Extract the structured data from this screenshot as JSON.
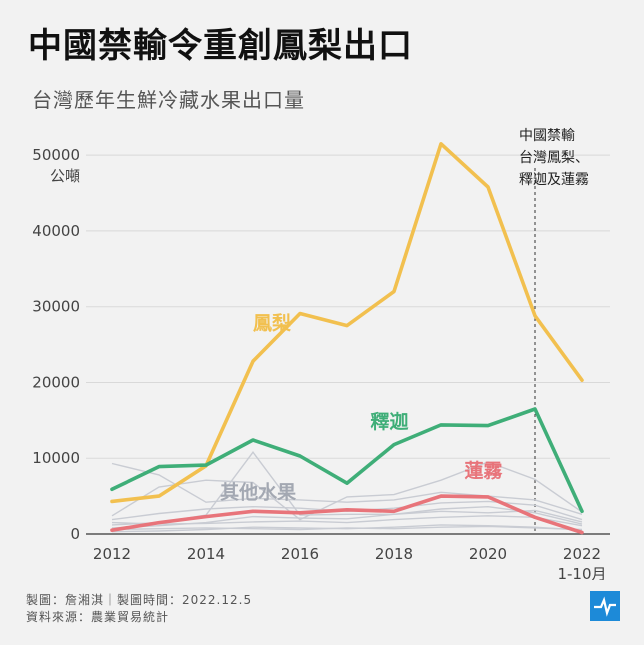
{
  "title": "中國禁輸令重創鳳梨出口",
  "subtitle": "台灣歷年生鮮冷藏水果出口量",
  "footer": {
    "maker": "製圖：詹湘淇｜製圖時間：2022.12.5",
    "source": "資料來源：農業貿易統計"
  },
  "logo_icon": "pulse-line-icon",
  "chart_data": {
    "type": "line",
    "title": "台灣歷年生鮮冷藏水果出口量",
    "ylabel": "公噸",
    "ylim": [
      0,
      52000
    ],
    "y_ticks": [
      0,
      10000,
      20000,
      30000,
      40000,
      50000
    ],
    "x": [
      2012,
      2013,
      2014,
      2015,
      2016,
      2017,
      2018,
      2019,
      2020,
      2021,
      2022
    ],
    "x_ticks": [
      {
        "value": 2012,
        "label": "2012",
        "sub": ""
      },
      {
        "value": 2014,
        "label": "2014",
        "sub": ""
      },
      {
        "value": 2016,
        "label": "2016",
        "sub": ""
      },
      {
        "value": 2018,
        "label": "2018",
        "sub": ""
      },
      {
        "value": 2020,
        "label": "2020",
        "sub": ""
      },
      {
        "value": 2022,
        "label": "2022",
        "sub": "1-10月"
      }
    ],
    "annotation": {
      "x": 2021,
      "lines": [
        "中國禁輸",
        "台灣鳳梨、",
        "釋迦及蓮霧"
      ]
    },
    "highlighted": [
      {
        "name": "鳳梨",
        "color": "#f2c04f",
        "label_pos": [
          2015,
          27000
        ],
        "values": [
          4300,
          5000,
          9000,
          22800,
          29100,
          27500,
          32000,
          51500,
          45800,
          28800,
          20300
        ]
      },
      {
        "name": "釋迦",
        "color": "#3fae78",
        "label_pos": [
          2017.5,
          14000
        ],
        "values": [
          5900,
          8900,
          9100,
          12400,
          10300,
          6700,
          11800,
          14400,
          14300,
          16500,
          3000
        ]
      },
      {
        "name": "蓮霧",
        "color": "#e8747a",
        "label_pos": [
          2019.5,
          7500
        ],
        "values": [
          500,
          1500,
          2300,
          3000,
          2800,
          3200,
          3000,
          5000,
          4900,
          2200,
          200
        ]
      }
    ],
    "others": {
      "name": "其他水果",
      "color": "#c9ccd3",
      "label_color": "#a3a8b2",
      "label_pos": [
        2014.3,
        5500
      ],
      "series": [
        [
          9300,
          7800,
          4200,
          4700,
          4500,
          4200,
          4500,
          5500,
          5000,
          4500,
          2600
        ],
        [
          2400,
          6200,
          7100,
          6800,
          1900,
          4900,
          5200,
          7100,
          9500,
          7200,
          2900
        ],
        [
          1200,
          1500,
          2500,
          10800,
          2500,
          2600,
          2600,
          3000,
          2800,
          3100,
          1600
        ],
        [
          1900,
          2700,
          3300,
          3600,
          3400,
          3000,
          3400,
          4100,
          4300,
          3800,
          1900
        ],
        [
          800,
          1100,
          1500,
          2300,
          2100,
          2000,
          2600,
          3300,
          3600,
          2800,
          1300
        ],
        [
          1500,
          1300,
          1400,
          1600,
          1700,
          1500,
          1900,
          2200,
          2400,
          2200,
          1100
        ],
        [
          300,
          400,
          600,
          900,
          800,
          700,
          900,
          1200,
          1100,
          900,
          500
        ],
        [
          600,
          700,
          800,
          700,
          600,
          800,
          700,
          900,
          1000,
          800,
          600
        ]
      ]
    }
  }
}
